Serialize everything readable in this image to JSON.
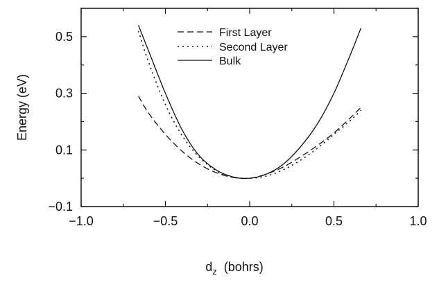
{
  "chart_data": {
    "type": "line",
    "title": "",
    "xlabel": "d",
    "xlabel_subscript": "z",
    "xlabel_unit": "(bohrs)",
    "ylabel": "Energy (eV)",
    "xlim": [
      -1.0,
      1.0
    ],
    "ylim": [
      -0.1,
      0.6
    ],
    "xticks": [
      -1.0,
      -0.5,
      0.0,
      0.5,
      1.0
    ],
    "xtick_labels": [
      "−1.0",
      "−0.5",
      "0.0",
      "0.5",
      "1.0"
    ],
    "yticks": [
      -0.1,
      0.1,
      0.3,
      0.5
    ],
    "ytick_labels": [
      "−0.1",
      "0.1",
      "0.3",
      "0.5"
    ],
    "grid": false,
    "legend_position": "top-center",
    "series": [
      {
        "name": "First Layer",
        "style": "dashed",
        "x": [
          -0.66,
          -0.6,
          -0.5,
          -0.4,
          -0.3,
          -0.2,
          -0.1,
          0.0,
          0.1,
          0.2,
          0.3,
          0.4,
          0.5,
          0.6,
          0.66
        ],
        "y": [
          0.29,
          0.23,
          0.155,
          0.095,
          0.05,
          0.02,
          0.003,
          0.0,
          0.015,
          0.04,
          0.075,
          0.115,
          0.16,
          0.215,
          0.25
        ]
      },
      {
        "name": "Second Layer",
        "style": "dotted",
        "x": [
          -0.66,
          -0.6,
          -0.5,
          -0.4,
          -0.3,
          -0.2,
          -0.1,
          0.0,
          0.1,
          0.2,
          0.3,
          0.4,
          0.5,
          0.6,
          0.66
        ],
        "y": [
          0.52,
          0.41,
          0.26,
          0.15,
          0.075,
          0.027,
          0.004,
          0.0,
          0.008,
          0.03,
          0.063,
          0.105,
          0.155,
          0.205,
          0.24
        ]
      },
      {
        "name": "Bulk",
        "style": "solid",
        "x": [
          -0.66,
          -0.6,
          -0.5,
          -0.4,
          -0.3,
          -0.2,
          -0.1,
          0.0,
          0.1,
          0.2,
          0.3,
          0.4,
          0.5,
          0.6,
          0.66
        ],
        "y": [
          0.54,
          0.45,
          0.3,
          0.17,
          0.08,
          0.03,
          0.005,
          0.0,
          0.015,
          0.05,
          0.11,
          0.19,
          0.3,
          0.44,
          0.53
        ]
      }
    ]
  }
}
